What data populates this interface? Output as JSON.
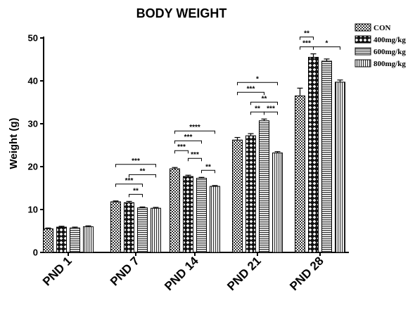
{
  "chart_data": {
    "type": "bar",
    "title": "BODY WEIGHT",
    "ylabel": "Weight (g)",
    "xlabel": "",
    "ylim": [
      0,
      50
    ],
    "yticks": [
      0,
      10,
      20,
      30,
      40,
      50
    ],
    "categories": [
      "PND 1",
      "PND 7",
      "PND 14",
      "PND 21",
      "PND 28"
    ],
    "series": [
      {
        "name": "CON",
        "pattern": "checker",
        "values": [
          5.5,
          11.8,
          19.5,
          26.2,
          36.5
        ],
        "errors": [
          0.2,
          0.2,
          0.3,
          0.6,
          1.8
        ]
      },
      {
        "name": "400mg/kg",
        "pattern": "diamond",
        "values": [
          5.9,
          11.6,
          17.7,
          27.2,
          45.5
        ],
        "errors": [
          0.2,
          0.3,
          0.3,
          0.5,
          0.8
        ]
      },
      {
        "name": "600mg/kg",
        "pattern": "hlines",
        "values": [
          5.7,
          10.4,
          17.3,
          30.7,
          44.6
        ],
        "errors": [
          0.2,
          0.2,
          0.2,
          0.4,
          0.5
        ]
      },
      {
        "name": "800mg/kg",
        "pattern": "vlines",
        "values": [
          6.0,
          10.3,
          15.4,
          23.2,
          39.7
        ],
        "errors": [
          0.2,
          0.2,
          0.2,
          0.3,
          0.5
        ]
      }
    ],
    "significance": [
      {
        "category": 1,
        "from": 0,
        "to": 3,
        "level": 3,
        "label": "***"
      },
      {
        "category": 1,
        "from": 1,
        "to": 3,
        "level": 2,
        "label": "**"
      },
      {
        "category": 1,
        "from": 0,
        "to": 2,
        "level": 1,
        "label": "***"
      },
      {
        "category": 1,
        "from": 1,
        "to": 2,
        "level": 0,
        "label": "**"
      },
      {
        "category": 2,
        "from": 0,
        "to": 3,
        "level": 3,
        "label": "****"
      },
      {
        "category": 2,
        "from": 0,
        "to": 2,
        "level": 2,
        "label": "***"
      },
      {
        "category": 2,
        "from": 0,
        "to": 1,
        "level": 1,
        "label": "***"
      },
      {
        "category": 2,
        "from": 1,
        "to": 2,
        "level": 1,
        "label": "***"
      },
      {
        "category": 2,
        "from": 2,
        "to": 3,
        "level": 0,
        "label": "**"
      },
      {
        "category": 3,
        "from": 0,
        "to": 3,
        "level": 3,
        "label": "*"
      },
      {
        "category": 3,
        "from": 0,
        "to": 2,
        "level": 2,
        "label": "***"
      },
      {
        "category": 3,
        "from": 1,
        "to": 3,
        "level": 1,
        "label": "**"
      },
      {
        "category": 3,
        "from": 1,
        "to": 2,
        "level": 0,
        "label": "**"
      },
      {
        "category": 3,
        "from": 2,
        "to": 3,
        "level": 0,
        "label": "***"
      },
      {
        "category": 4,
        "from": 0,
        "to": 1,
        "level": 1,
        "label": "**"
      },
      {
        "category": 4,
        "from": 0,
        "to": 1,
        "level": 0,
        "label": "***"
      },
      {
        "category": 4,
        "from": 1,
        "to": 3,
        "level": 0,
        "label": "*"
      }
    ],
    "legend_position": "top-right",
    "grid": false
  }
}
